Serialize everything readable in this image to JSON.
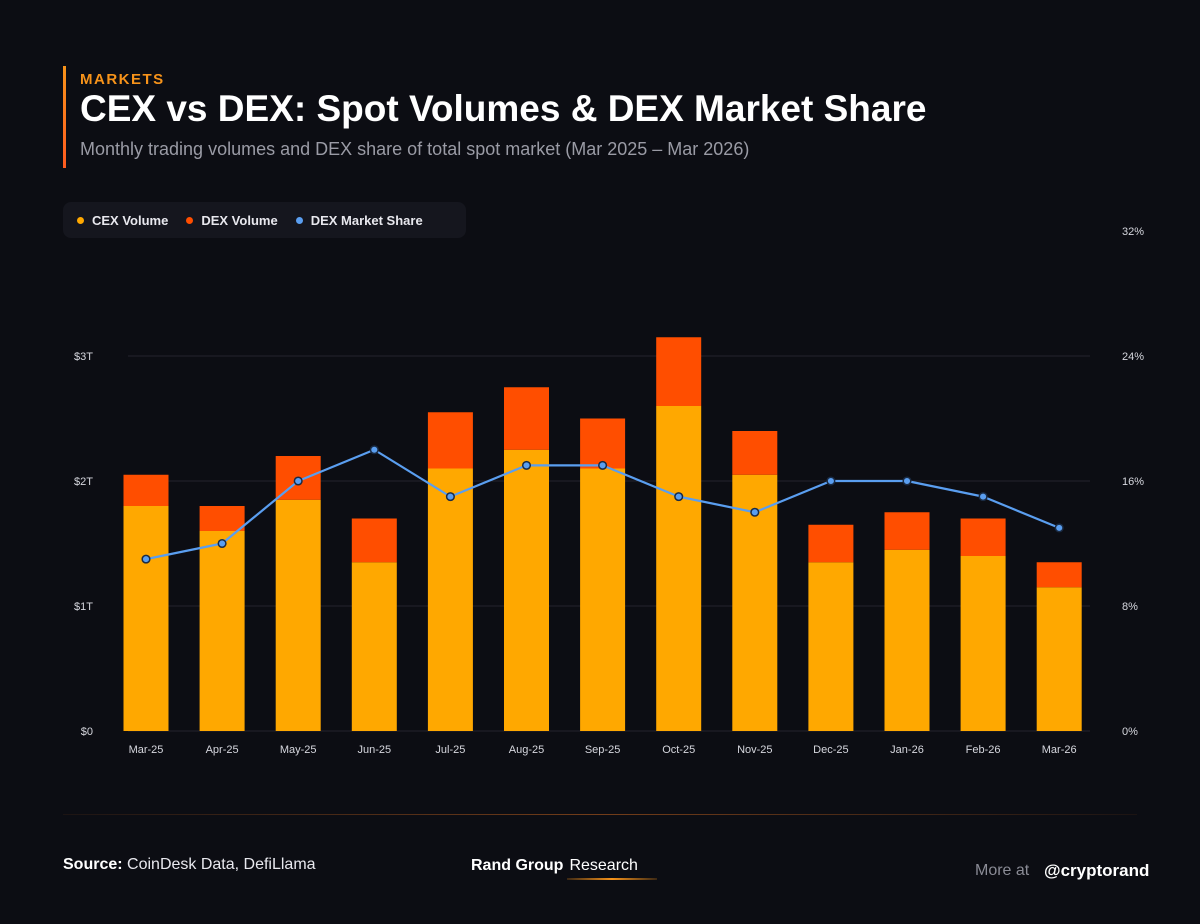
{
  "header": {
    "kicker": "MARKETS",
    "title": "CEX vs DEX: Spot Volumes & DEX Market Share",
    "subtitle": "Monthly trading volumes and DEX share of total spot market (Mar 2025 – Mar 2026)"
  },
  "legend": {
    "items": [
      {
        "label": "CEX Volume",
        "color": "#ffa800"
      },
      {
        "label": "DEX Volume",
        "color": "#ff4e00"
      },
      {
        "label": "DEX Market Share",
        "color": "#5a9ef0"
      }
    ]
  },
  "chart_data": {
    "type": "bar",
    "stacked": true,
    "categories": [
      "Mar-25",
      "Apr-25",
      "May-25",
      "Jun-25",
      "Jul-25",
      "Aug-25",
      "Sep-25",
      "Oct-25",
      "Nov-25",
      "Dec-25",
      "Jan-26",
      "Feb-26",
      "Mar-26"
    ],
    "series": [
      {
        "name": "CEX Volume",
        "color": "#ffa800",
        "axis": "left",
        "values": [
          1.8,
          1.6,
          1.85,
          1.35,
          2.1,
          2.25,
          2.1,
          2.6,
          2.05,
          1.35,
          1.45,
          1.4,
          1.15
        ]
      },
      {
        "name": "DEX Volume",
        "color": "#ff4e00",
        "axis": "left",
        "values": [
          0.25,
          0.2,
          0.35,
          0.35,
          0.45,
          0.5,
          0.4,
          0.55,
          0.35,
          0.3,
          0.3,
          0.3,
          0.2
        ]
      },
      {
        "name": "DEX Market Share",
        "color": "#5a9ef0",
        "axis": "right",
        "type": "line",
        "values": [
          11.0,
          12.0,
          16.0,
          18.0,
          15.0,
          17.0,
          17.0,
          15.0,
          14.0,
          16.0,
          16.0,
          15.0,
          13.0
        ]
      }
    ],
    "y_left": {
      "ticks": [
        "$0",
        "$1T",
        "$2T",
        "$3T"
      ],
      "tick_values": [
        0,
        1,
        2,
        3
      ],
      "range": [
        0,
        3.5
      ]
    },
    "y_right": {
      "ticks": [
        "0%",
        "8%",
        "16%",
        "24%",
        "32%"
      ],
      "tick_values": [
        0,
        8,
        16,
        24,
        32
      ],
      "range": [
        0,
        32
      ]
    },
    "grid": true
  },
  "footer": {
    "source_label": "Source:",
    "source_text": "CoinDesk Data, DefiLlama",
    "brand_name": "Rand Group",
    "brand_sub": "Research",
    "more_label": "More at",
    "handle": "@cryptorand"
  }
}
